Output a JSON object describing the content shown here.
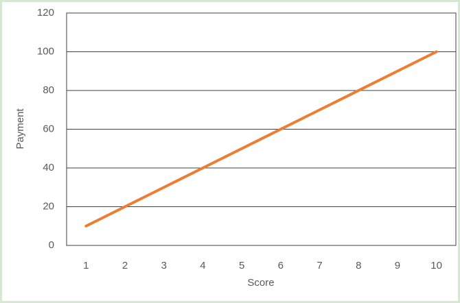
{
  "chart_data": {
    "type": "line",
    "x_label": "Score",
    "y_label": "Payment",
    "categories": [
      "1",
      "2",
      "3",
      "4",
      "5",
      "6",
      "7",
      "8",
      "9",
      "10"
    ],
    "series": [
      {
        "name": "Payment",
        "color": "#ed7d31",
        "values": [
          10,
          20,
          30,
          40,
          50,
          60,
          70,
          80,
          90,
          100
        ]
      }
    ],
    "ylim": [
      0,
      120
    ],
    "yticks": [
      0,
      20,
      40,
      60,
      80,
      100,
      120
    ],
    "grid": true,
    "legend": false
  }
}
